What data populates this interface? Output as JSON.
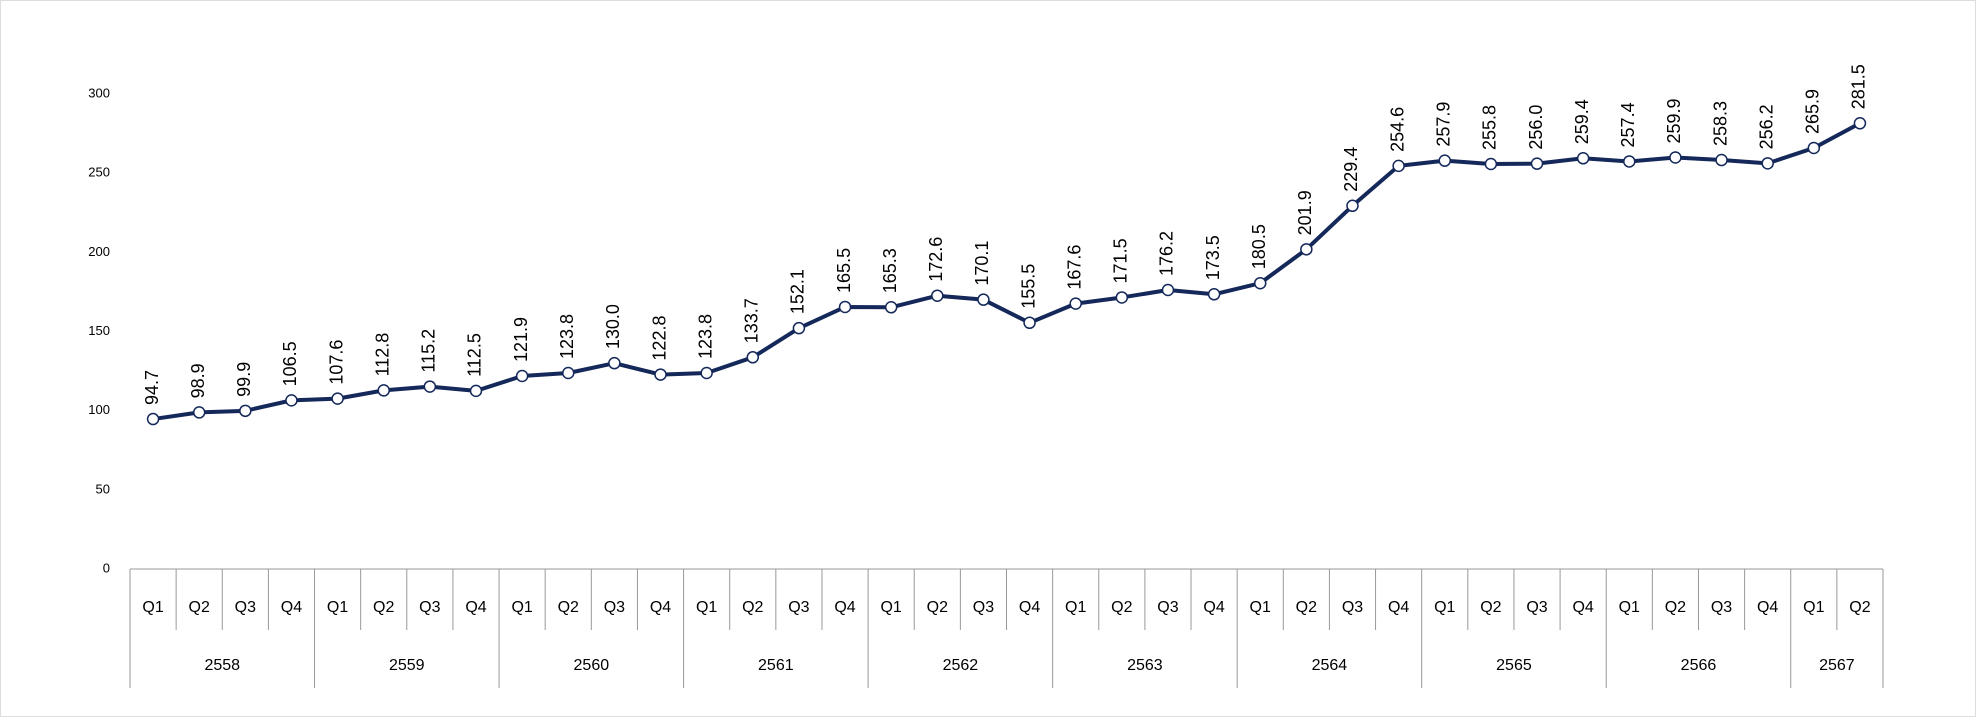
{
  "chart_data": {
    "type": "line",
    "groups": [
      {
        "name": "2558",
        "categories": [
          "Q1",
          "Q2",
          "Q3",
          "Q4"
        ]
      },
      {
        "name": "2559",
        "categories": [
          "Q1",
          "Q2",
          "Q3",
          "Q4"
        ]
      },
      {
        "name": "2560",
        "categories": [
          "Q1",
          "Q2",
          "Q3",
          "Q4"
        ]
      },
      {
        "name": "2561",
        "categories": [
          "Q1",
          "Q2",
          "Q3",
          "Q4"
        ]
      },
      {
        "name": "2562",
        "categories": [
          "Q1",
          "Q2",
          "Q3",
          "Q4"
        ]
      },
      {
        "name": "2563",
        "categories": [
          "Q1",
          "Q2",
          "Q3",
          "Q4"
        ]
      },
      {
        "name": "2564",
        "categories": [
          "Q1",
          "Q2",
          "Q3",
          "Q4"
        ]
      },
      {
        "name": "2565",
        "categories": [
          "Q1",
          "Q2",
          "Q3",
          "Q4"
        ]
      },
      {
        "name": "2566",
        "categories": [
          "Q1",
          "Q2",
          "Q3",
          "Q4"
        ]
      },
      {
        "name": "2567",
        "categories": [
          "Q1",
          "Q2"
        ]
      }
    ],
    "values": [
      94.7,
      98.9,
      99.9,
      106.5,
      107.6,
      112.8,
      115.2,
      112.5,
      121.9,
      123.8,
      130.0,
      122.8,
      123.8,
      133.7,
      152.1,
      165.5,
      165.3,
      172.6,
      170.1,
      155.5,
      167.6,
      171.5,
      176.2,
      173.5,
      180.5,
      201.9,
      229.4,
      254.6,
      257.9,
      255.8,
      256.0,
      259.4,
      257.4,
      259.9,
      258.3,
      256.2,
      265.9,
      281.5
    ],
    "value_labels": [
      "94.7",
      "98.9",
      "99.9",
      "106.5",
      "107.6",
      "112.8",
      "115.2",
      "112.5",
      "121.9",
      "123.8",
      "130.0",
      "122.8",
      "123.8",
      "133.7",
      "152.1",
      "165.5",
      "165.3",
      "172.6",
      "170.1",
      "155.5",
      "167.6",
      "171.5",
      "176.2",
      "173.5",
      "180.5",
      "201.9",
      "229.4",
      "254.6",
      "257.9",
      "255.8",
      "256.0",
      "259.4",
      "257.4",
      "259.9",
      "258.3",
      "256.2",
      "265.9",
      "281.5"
    ],
    "color": "#14285a",
    "ylim": [
      0,
      300
    ],
    "yticks": [
      0,
      50,
      100,
      150,
      200,
      250,
      300
    ],
    "grid": false
  }
}
